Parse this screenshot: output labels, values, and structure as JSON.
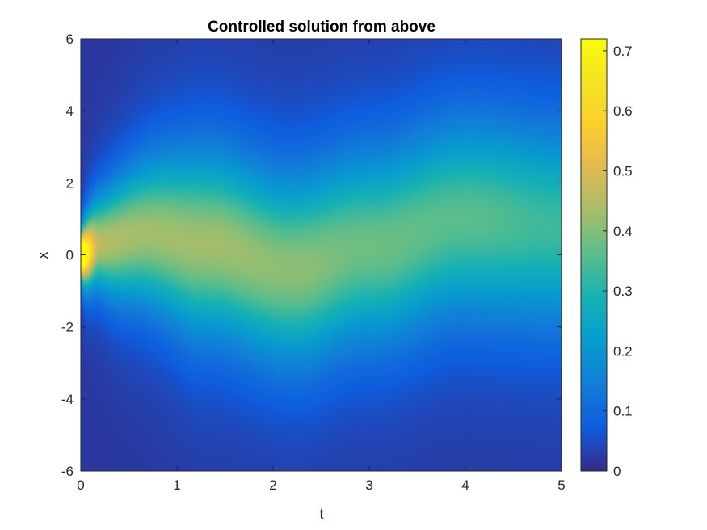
{
  "chart_data": {
    "type": "heatmap",
    "title": "Controlled solution from above",
    "xlabel": "t",
    "ylabel": "x",
    "xlim": [
      0,
      5
    ],
    "ylim": [
      -6,
      6
    ],
    "xticks": [
      "0",
      "1",
      "2",
      "3",
      "4",
      "5"
    ],
    "yticks": [
      "-6",
      "-4",
      "-2",
      "0",
      "2",
      "4",
      "6"
    ],
    "colorbar": {
      "range": [
        0,
        0.72
      ],
      "ticks": [
        "0",
        "0.1",
        "0.2",
        "0.3",
        "0.4",
        "0.5",
        "0.6",
        "0.7"
      ],
      "colormap": "parula"
    },
    "field": {
      "description_points": [
        {
          "t": 0.0,
          "center": 0.0,
          "peak": 0.7
        },
        {
          "t": 0.2,
          "center": 0.35,
          "peak": 0.45
        },
        {
          "t": 0.7,
          "center": 0.6,
          "peak": 0.43
        },
        {
          "t": 1.3,
          "center": 0.3,
          "peak": 0.43
        },
        {
          "t": 2.2,
          "center": -0.4,
          "peak": 0.41
        },
        {
          "t": 3.0,
          "center": 0.2,
          "peak": 0.38
        },
        {
          "t": 4.0,
          "center": 1.0,
          "peak": 0.36
        },
        {
          "t": 5.0,
          "center": 0.8,
          "peak": 0.33
        }
      ],
      "background": 0.02
    },
    "grid": false
  }
}
